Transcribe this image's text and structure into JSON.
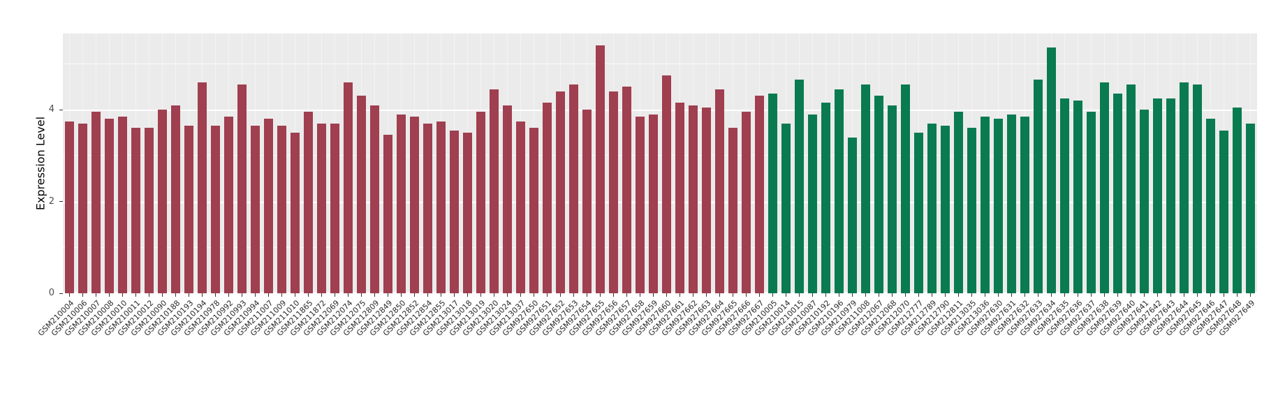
{
  "chart_data": {
    "type": "bar",
    "title": "",
    "xlabel": "",
    "ylabel": "Expression Level",
    "ylim": [
      0,
      5.66
    ],
    "yticks": [
      0,
      2,
      4
    ],
    "minor_yticks": [
      1,
      3,
      5
    ],
    "grid": "horizontal-major-and-minor-white-on-gray",
    "legend": "none",
    "panel_background": "#EBEBEB",
    "grid_color": "#FFFFFF",
    "axis_text_color": "#2B2B2B",
    "group_split": 53,
    "groups": [
      {
        "name": "group-1-dark-red",
        "color": "#9F3F50"
      },
      {
        "name": "group-2-dark-green",
        "color": "#0A7B50"
      }
    ],
    "categories": [
      "GSM210004",
      "GSM210006",
      "GSM210007",
      "GSM210008",
      "GSM210010",
      "GSM210011",
      "GSM210012",
      "GSM210090",
      "GSM210188",
      "GSM210193",
      "GSM210194",
      "GSM210978",
      "GSM210992",
      "GSM210993",
      "GSM210994",
      "GSM211007",
      "GSM211009",
      "GSM211010",
      "GSM211865",
      "GSM211872",
      "GSM212069",
      "GSM212074",
      "GSM212075",
      "GSM212809",
      "GSM212849",
      "GSM212850",
      "GSM212852",
      "GSM212854",
      "GSM212855",
      "GSM213017",
      "GSM213018",
      "GSM213019",
      "GSM213020",
      "GSM213024",
      "GSM213037",
      "GSM927650",
      "GSM927651",
      "GSM927652",
      "GSM927653",
      "GSM927654",
      "GSM927655",
      "GSM927656",
      "GSM927657",
      "GSM927658",
      "GSM927659",
      "GSM927660",
      "GSM927661",
      "GSM927662",
      "GSM927663",
      "GSM927664",
      "GSM927665",
      "GSM927666",
      "GSM927667",
      "GSM210005",
      "GSM210014",
      "GSM210015",
      "GSM210087",
      "GSM210192",
      "GSM210196",
      "GSM210979",
      "GSM211008",
      "GSM212067",
      "GSM212068",
      "GSM212070",
      "GSM212777",
      "GSM212789",
      "GSM212790",
      "GSM212811",
      "GSM213035",
      "GSM213036",
      "GSM927630",
      "GSM927631",
      "GSM927632",
      "GSM927633",
      "GSM927634",
      "GSM927635",
      "GSM927636",
      "GSM927637",
      "GSM927638",
      "GSM927639",
      "GSM927640",
      "GSM927641",
      "GSM927642",
      "GSM927643",
      "GSM927644",
      "GSM927645",
      "GSM927646",
      "GSM927647",
      "GSM927648",
      "GSM927649"
    ],
    "values": [
      3.75,
      3.7,
      3.95,
      3.8,
      3.85,
      3.6,
      3.6,
      4.0,
      4.1,
      3.65,
      4.6,
      3.65,
      3.85,
      4.55,
      3.65,
      3.8,
      3.65,
      3.5,
      3.95,
      3.7,
      3.7,
      4.6,
      4.3,
      4.1,
      3.45,
      3.9,
      3.85,
      3.7,
      3.75,
      3.55,
      3.5,
      3.95,
      4.45,
      4.1,
      3.75,
      3.6,
      4.15,
      4.4,
      4.55,
      4.0,
      5.4,
      4.4,
      4.5,
      3.85,
      3.9,
      4.75,
      4.15,
      4.1,
      4.05,
      4.45,
      3.6,
      3.95,
      4.3,
      4.35,
      3.7,
      4.65,
      3.9,
      4.15,
      4.45,
      3.4,
      4.55,
      4.3,
      4.1,
      4.55,
      3.5,
      3.7,
      3.65,
      3.95,
      3.6,
      3.85,
      3.8,
      3.9,
      3.85,
      4.65,
      5.35,
      4.25,
      4.2,
      3.95,
      4.6,
      4.35,
      4.55,
      4.0,
      4.25,
      4.25,
      4.6,
      4.55,
      3.8,
      3.55,
      4.05,
      3.7
    ]
  }
}
